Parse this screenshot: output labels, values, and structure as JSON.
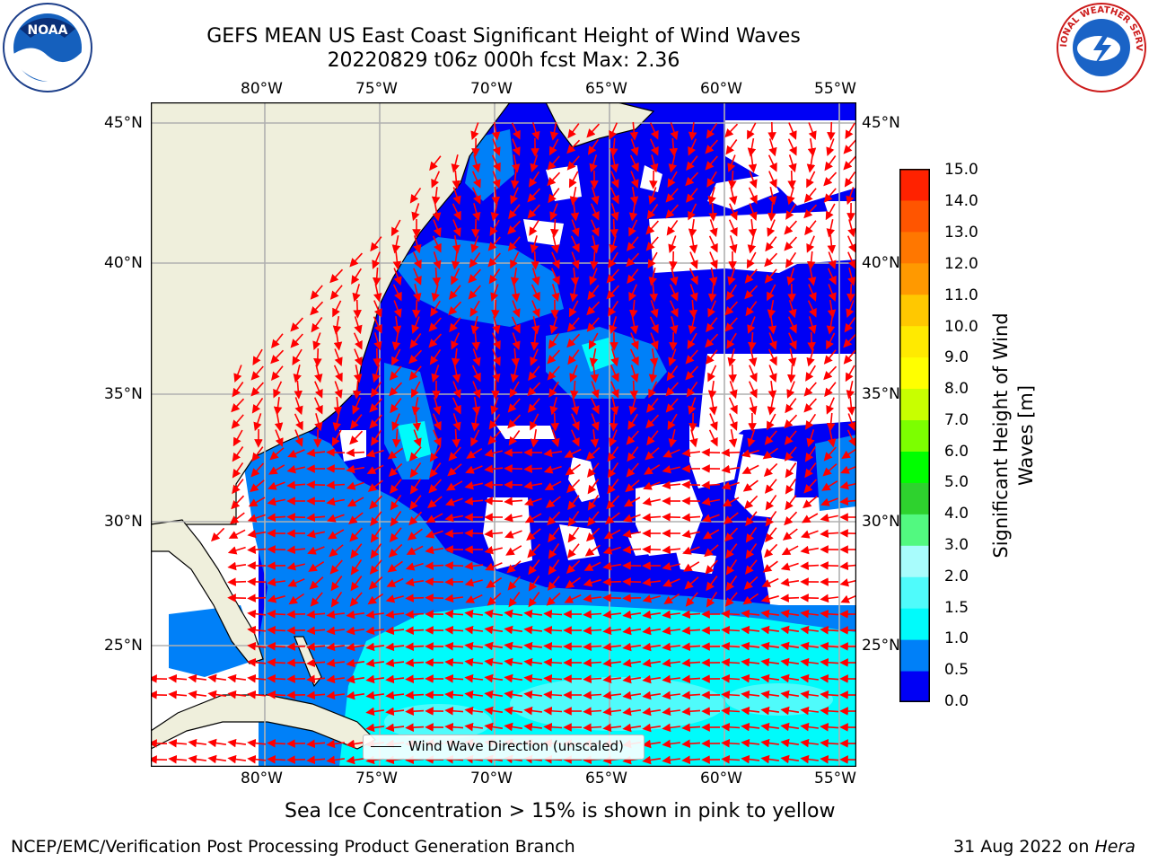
{
  "title": {
    "line1": "GEFS MEAN US East Coast Significant Height of Wind Waves",
    "line2": "20220829 t06z 000h fcst   Max: 2.36"
  },
  "axes": {
    "lon_ticks": [
      "80°W",
      "75°W",
      "70°W",
      "65°W",
      "60°W",
      "55°W"
    ],
    "lat_ticks": [
      "45°N",
      "40°N",
      "35°N",
      "30°N",
      "25°N"
    ]
  },
  "legend": {
    "label": "Wind Wave Direction (unscaled)"
  },
  "colorbar": {
    "label": "Significant Height of Wind Waves [m]",
    "ticks": [
      "15.0",
      "14.0",
      "13.0",
      "12.0",
      "11.0",
      "10.0",
      "9.0",
      "8.0",
      "7.0",
      "6.0",
      "5.0",
      "4.0",
      "3.0",
      "2.0",
      "1.5",
      "1.0",
      "0.5",
      "0.0"
    ],
    "colors": [
      "#0000f5",
      "#0080f8",
      "#00fbfb",
      "#4ffbfb",
      "#a8fcfc",
      "#52f980",
      "#2ed22e",
      "#00ff00",
      "#7cff00",
      "#c8ff00",
      "#ffff00",
      "#ffea00",
      "#ffc800",
      "#ff9900",
      "#ff7700",
      "#ff5500",
      "#ff2200"
    ]
  },
  "note": "Sea Ice Concentration > 15% is shown in pink to yellow",
  "footer": {
    "left": "NCEP/EMC/Verification Post Processing Product Generation Branch",
    "right_date": "31 Aug 2022 on ",
    "right_host": "Hera"
  },
  "logos": {
    "left": "NOAA",
    "right": "NATIONAL WEATHER SERVICE"
  },
  "colors": {
    "land": "#efefdc",
    "ocean_low": "#0000f5",
    "arrow": "#ff0000",
    "grid": "#b0b0b0"
  }
}
